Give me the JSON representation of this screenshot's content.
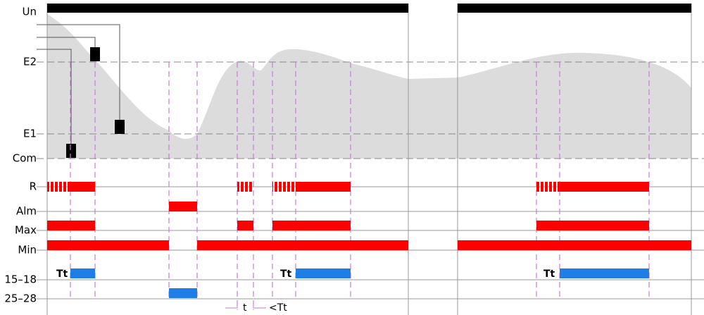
{
  "rows": {
    "un": "Un",
    "e2": "E2",
    "e1": "E1",
    "com": "Com",
    "r": "R",
    "alm": "Alm",
    "max": "Max",
    "min": "Min",
    "r1518": "15–18",
    "r2528": "25–28"
  },
  "annotations": {
    "tt": [
      "Tt",
      "Tt",
      "Tt"
    ],
    "t": "t",
    "lt_tt": "<Tt"
  }
}
